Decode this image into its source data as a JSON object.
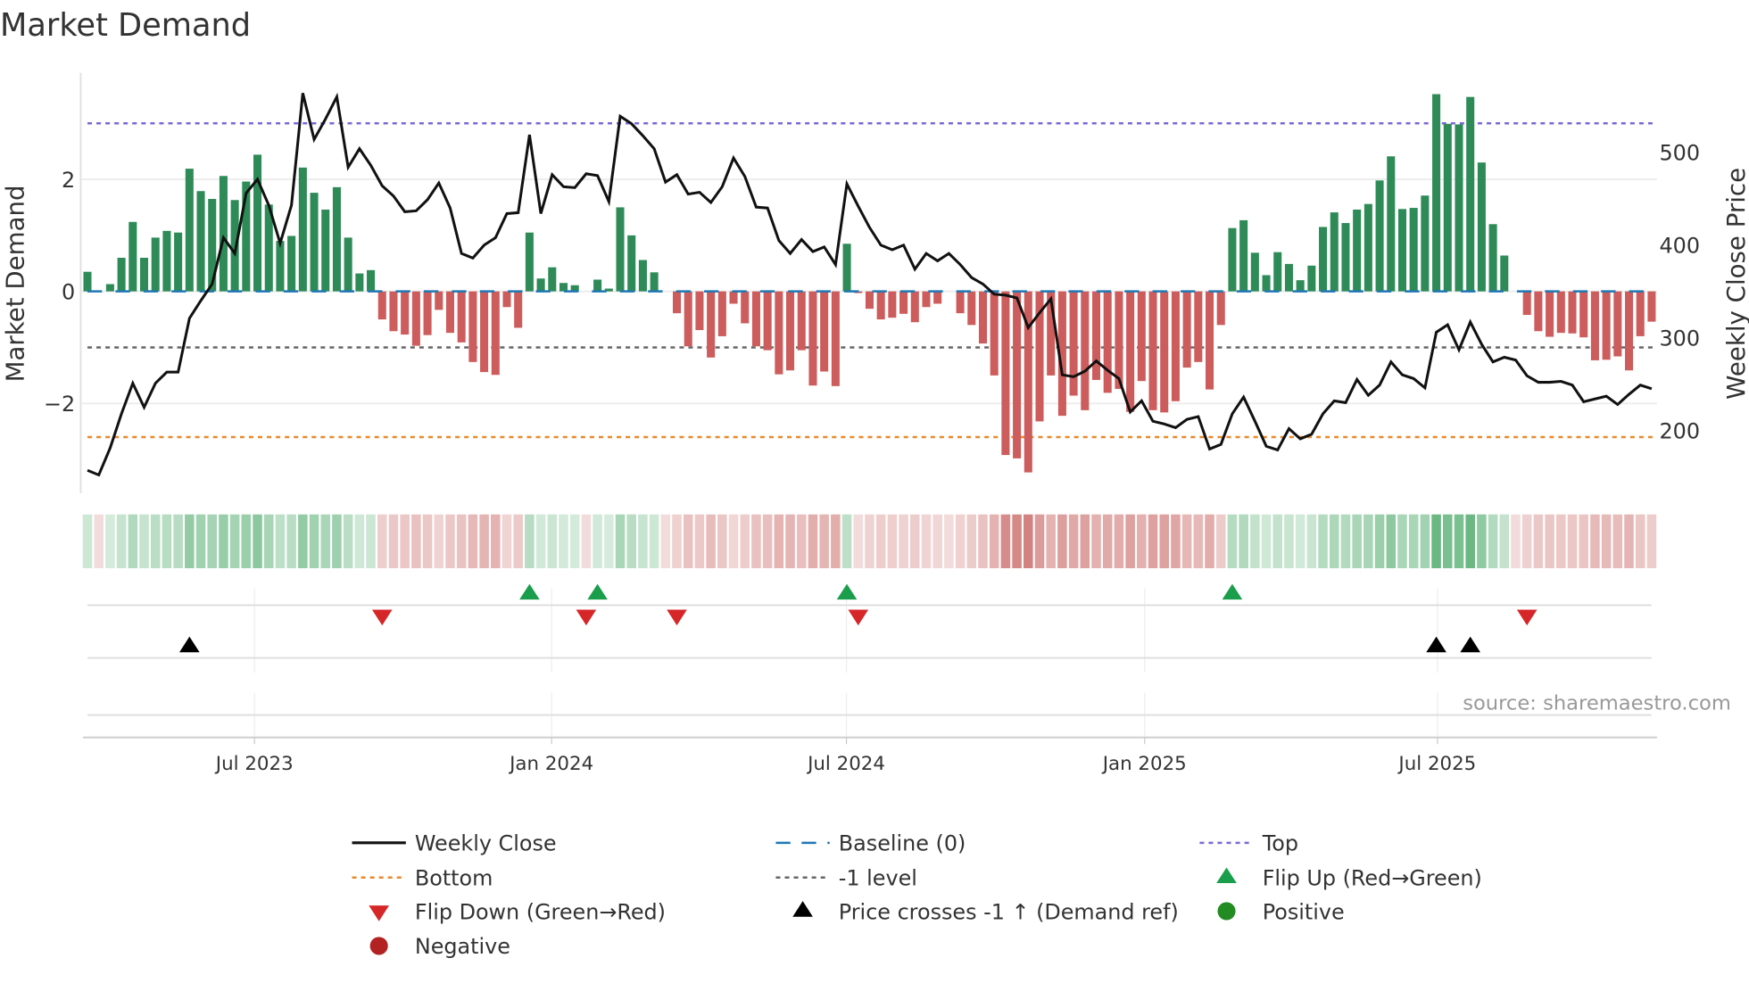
{
  "chart_data": {
    "type": "bar",
    "title": "Market Demand",
    "ylabel": "Market Demand",
    "y2label": "Weekly Close Price",
    "ylim": [
      -3.6,
      3.9
    ],
    "y2lim": [
      132,
      584
    ],
    "yticks": [
      {
        "value": 2,
        "label": "2"
      },
      {
        "value": 0,
        "label": "0"
      },
      {
        "value": -2,
        "label": "−2"
      }
    ],
    "y2ticks": [
      {
        "value": 500,
        "label": "500"
      },
      {
        "value": 400,
        "label": "400"
      },
      {
        "value": 300,
        "label": "300"
      },
      {
        "value": 200,
        "label": "200"
      }
    ],
    "xticks": [
      {
        "week": 15.74,
        "label": "Jul 2023"
      },
      {
        "week": 41.95,
        "label": "Jan 2024"
      },
      {
        "week": 67.96,
        "label": "Jul 2024"
      },
      {
        "week": 94.27,
        "label": "Jan 2025"
      },
      {
        "week": 120.1,
        "label": "Jul 2025"
      }
    ],
    "grid": true,
    "levels": {
      "top": 3.0,
      "bottom": -2.6,
      "minus_one": -1.0,
      "baseline": 0
    },
    "demand": [
      0.35,
      0,
      0.13,
      0.6,
      1.24,
      0.6,
      0.96,
      1.08,
      1.05,
      2.19,
      1.79,
      1.65,
      2.06,
      1.63,
      1.96,
      2.44,
      1.55,
      0.9,
      0.99,
      2.21,
      1.76,
      1.46,
      1.86,
      0.96,
      0.32,
      0.38,
      -0.5,
      -0.71,
      -0.77,
      -0.97,
      -0.78,
      -0.33,
      -0.74,
      -0.91,
      -1.26,
      -1.44,
      -1.49,
      -0.28,
      -0.65,
      1.05,
      0.23,
      0.43,
      0.15,
      0.11,
      0,
      0.21,
      0.05,
      1.5,
      1.0,
      0.56,
      0.34,
      0,
      -0.39,
      -0.98,
      -0.69,
      -1.18,
      -0.8,
      -0.22,
      -0.57,
      -0.98,
      -1.05,
      -1.48,
      -1.41,
      -1.05,
      -1.68,
      -1.43,
      -1.69,
      0.85,
      -0.03,
      -0.31,
      -0.5,
      -0.47,
      -0.4,
      -0.55,
      -0.28,
      -0.22,
      0,
      -0.39,
      -0.6,
      -0.93,
      -1.5,
      -2.92,
      -2.98,
      -3.23,
      -2.32,
      -1.5,
      -2.22,
      -1.86,
      -2.12,
      -1.58,
      -1.81,
      -1.74,
      -2.15,
      -1.6,
      -2.12,
      -2.16,
      -1.96,
      -1.36,
      -1.26,
      -1.75,
      -0.6,
      1.13,
      1.27,
      0.69,
      0.29,
      0.7,
      0.49,
      0.2,
      0.46,
      1.15,
      1.41,
      1.22,
      1.46,
      1.56,
      1.98,
      2.41,
      1.47,
      1.49,
      1.71,
      3.52,
      2.99,
      2.98,
      3.47,
      2.3,
      1.2,
      0.64,
      0,
      -0.42,
      -0.71,
      -0.81,
      -0.74,
      -0.75,
      -0.82,
      -1.23,
      -1.22,
      -1.16,
      -1.41,
      -0.8,
      -0.54
    ],
    "weekly_close": [
      157,
      152,
      181,
      218,
      251,
      225,
      251,
      263,
      263,
      321,
      340,
      358,
      408,
      391,
      456,
      471,
      443,
      402,
      443,
      564,
      514,
      536,
      560,
      484,
      504,
      486,
      464,
      453,
      436,
      437,
      449,
      467,
      440,
      391,
      386,
      400,
      408,
      434,
      435,
      519,
      434,
      476,
      463,
      462,
      477,
      475,
      447,
      539,
      531,
      518,
      504,
      468,
      476,
      455,
      457,
      446,
      463,
      494,
      474,
      441,
      440,
      405,
      391,
      406,
      393,
      398,
      379,
      466,
      442,
      419,
      400,
      395,
      400,
      374,
      391,
      383,
      391,
      379,
      365,
      358,
      347,
      346,
      343,
      311,
      327,
      342,
      260,
      258,
      264,
      275,
      265,
      256,
      220,
      232,
      210,
      207,
      203,
      212,
      215,
      180,
      185,
      218,
      236,
      210,
      183,
      179,
      202,
      191,
      196,
      218,
      232,
      230,
      255,
      238,
      249,
      274,
      260,
      256,
      246,
      306,
      314,
      287,
      317,
      293,
      274,
      279,
      276,
      259,
      252,
      252,
      253,
      249,
      231,
      234,
      237,
      228,
      239,
      249,
      245
    ],
    "flip_up_weeks": [
      40,
      46,
      68,
      102
    ],
    "flip_down_weeks": [
      27,
      45,
      53,
      69,
      128
    ],
    "price_cross_weeks": [
      10,
      120,
      123
    ],
    "legend_placement": "bottom",
    "legend": [
      {
        "key": "weekly_close",
        "label": "Weekly Close"
      },
      {
        "key": "baseline",
        "label": "Baseline (0)"
      },
      {
        "key": "top",
        "label": "Top"
      },
      {
        "key": "bottom",
        "label": "Bottom"
      },
      {
        "key": "minus_one",
        "label": "-1 level"
      },
      {
        "key": "flip_up",
        "label": "Flip Up (Red→Green)"
      },
      {
        "key": "flip_down",
        "label": "Flip Down (Green→Red)"
      },
      {
        "key": "price_cross",
        "label": "Price crosses -1 ↑ (Demand ref)"
      },
      {
        "key": "positive",
        "label": "Positive"
      },
      {
        "key": "negative",
        "label": "Negative"
      }
    ],
    "source": "source: sharemaestro.com"
  },
  "colors": {
    "positive_bar": "#2e8b57",
    "negative_bar": "#cd5c5c",
    "price_line": "#111111",
    "top": "#7b68d8",
    "bottom": "#e8892b",
    "minus_one": "#666666",
    "baseline": "#1f77b4",
    "flip_up": "#1a9e4b",
    "flip_down": "#d62728",
    "price_cross": "#000000",
    "positive_dot": "#228b22",
    "negative_dot": "#b22222"
  }
}
